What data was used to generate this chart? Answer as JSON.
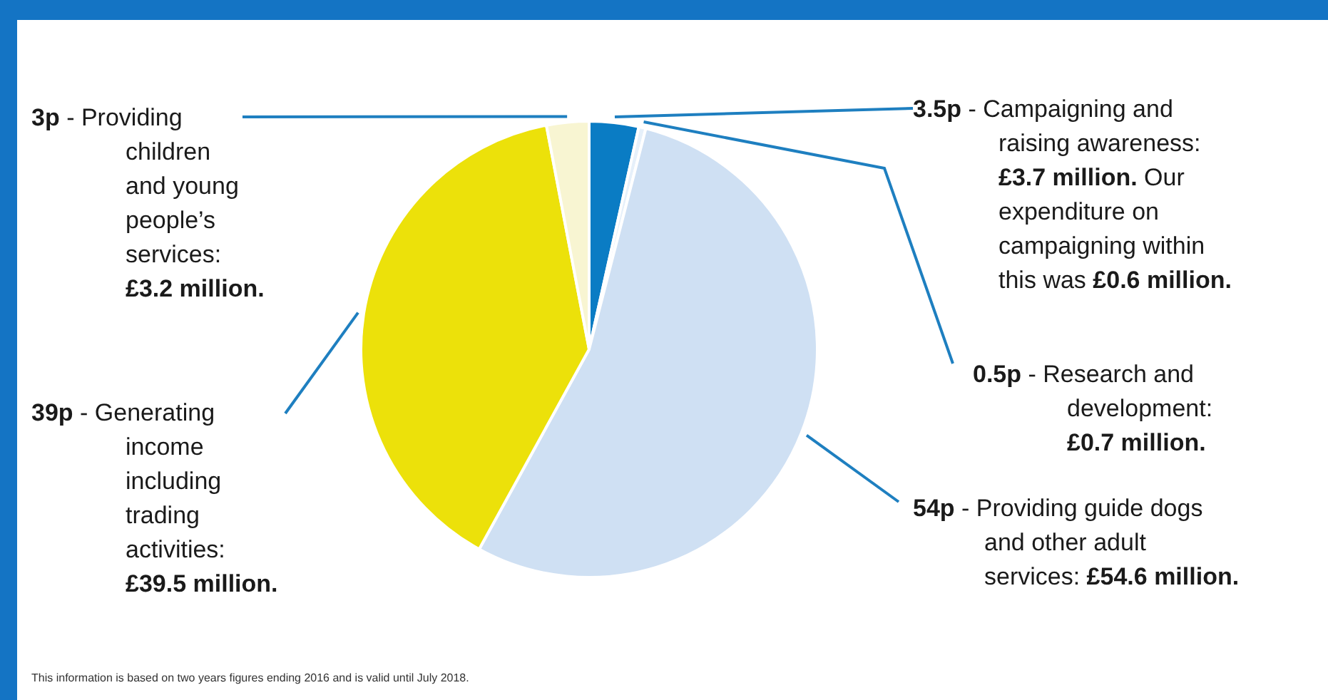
{
  "chart_data": {
    "type": "pie",
    "categories": [
      "- Campaigning and raising awareness: £3.7 million. Our expenditure on campaigning within this was £0.6 million.",
      "- Research and development: £0.7 million.",
      "- Providing guide dogs and other adult services: £54.6 million.",
      "- Generating income including trading activities: £39.5 million.",
      "- Providing children and young people’s services: £3.2 million."
    ],
    "values": [
      3.5,
      0.5,
      54,
      39,
      3
    ],
    "value_labels": [
      "3.5p",
      "0.5p",
      "54p",
      "39p",
      "3p"
    ],
    "colors": [
      "#0a7cc4",
      "#e6f0fa",
      "#cfe0f3",
      "#ece10a",
      "#f8f5d2"
    ],
    "annotations": [
      "This information is based on two years figures ending 2016 and is valid until July 2018."
    ]
  }
}
